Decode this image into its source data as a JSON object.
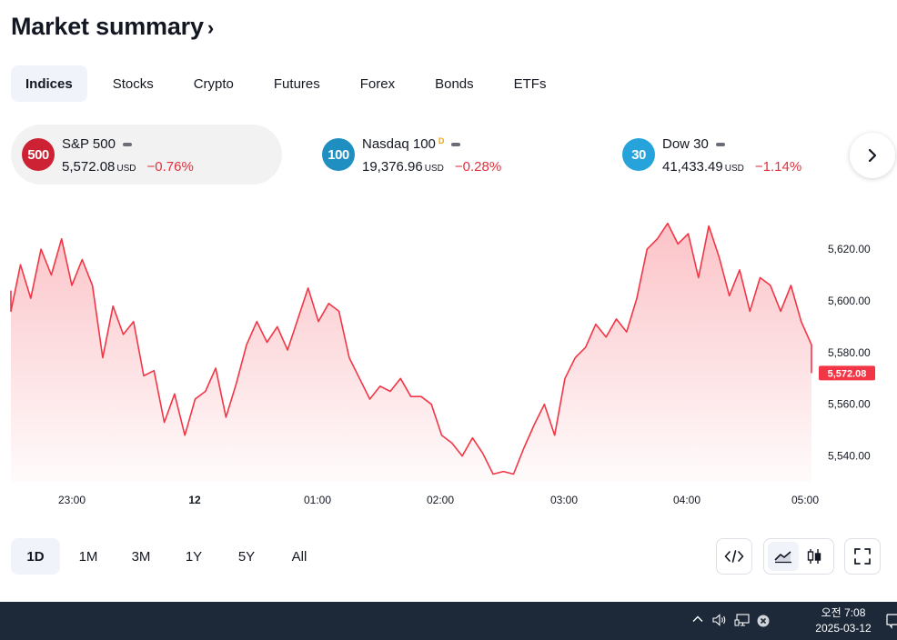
{
  "header": {
    "title": "Market summary",
    "chevron": "›"
  },
  "tabs": [
    {
      "label": "Indices",
      "active": true
    },
    {
      "label": "Stocks"
    },
    {
      "label": "Crypto"
    },
    {
      "label": "Futures"
    },
    {
      "label": "Forex"
    },
    {
      "label": "Bonds"
    },
    {
      "label": "ETFs"
    }
  ],
  "tickers": [
    {
      "badge": "500",
      "badge_color": "#cc2233",
      "name": "S&P 500",
      "flag": "",
      "price": "5,572.08",
      "currency": "USD",
      "change": "−0.76%",
      "active": true
    },
    {
      "badge": "100",
      "badge_color": "#1e8fc0",
      "name": "Nasdaq 100",
      "flag": "D",
      "price": "19,376.96",
      "currency": "USD",
      "change": "−0.28%"
    },
    {
      "badge": "30",
      "badge_color": "#26a3da",
      "name": "Dow 30",
      "flag": "",
      "price": "41,433.49",
      "currency": "USD",
      "change": "−1.14%"
    }
  ],
  "chart_data": {
    "type": "area",
    "series_color": "#f23645",
    "x_ticks": [
      "23:00",
      "12",
      "01:00",
      "02:00",
      "03:00",
      "04:00",
      "05:00"
    ],
    "y_ticks": [
      "5,620.00",
      "5,600.00",
      "5,580.00",
      "5,560.00",
      "5,540.00"
    ],
    "ylim": [
      5530,
      5632
    ],
    "last_price_label": "5,572.08",
    "points": [
      [
        "22:25",
        5604
      ],
      [
        "22:30",
        5596
      ],
      [
        "22:35",
        5614
      ],
      [
        "22:40",
        5601
      ],
      [
        "22:45",
        5620
      ],
      [
        "22:50",
        5610
      ],
      [
        "22:55",
        5624
      ],
      [
        "23:00",
        5606
      ],
      [
        "23:05",
        5616
      ],
      [
        "23:10",
        5606
      ],
      [
        "23:15",
        5578
      ],
      [
        "23:20",
        5598
      ],
      [
        "23:25",
        5587
      ],
      [
        "23:30",
        5592
      ],
      [
        "23:35",
        5571
      ],
      [
        "23:40",
        5573
      ],
      [
        "23:45",
        5553
      ],
      [
        "23:50",
        5564
      ],
      [
        "23:55",
        5548
      ],
      [
        "00:00",
        5562
      ],
      [
        "00:05",
        5565
      ],
      [
        "00:10",
        5574
      ],
      [
        "00:15",
        5555
      ],
      [
        "00:20",
        5568
      ],
      [
        "00:25",
        5583
      ],
      [
        "00:30",
        5592
      ],
      [
        "00:35",
        5584
      ],
      [
        "00:40",
        5590
      ],
      [
        "00:45",
        5581
      ],
      [
        "00:50",
        5593
      ],
      [
        "00:55",
        5605
      ],
      [
        "01:00",
        5592
      ],
      [
        "01:05",
        5599
      ],
      [
        "01:10",
        5596
      ],
      [
        "01:15",
        5578
      ],
      [
        "01:20",
        5570
      ],
      [
        "01:25",
        5562
      ],
      [
        "01:30",
        5567
      ],
      [
        "01:35",
        5565
      ],
      [
        "01:40",
        5570
      ],
      [
        "01:45",
        5563
      ],
      [
        "01:50",
        5563
      ],
      [
        "01:55",
        5560
      ],
      [
        "02:00",
        5548
      ],
      [
        "02:05",
        5545
      ],
      [
        "02:10",
        5540
      ],
      [
        "02:15",
        5547
      ],
      [
        "02:20",
        5541
      ],
      [
        "02:25",
        5533
      ],
      [
        "02:30",
        5534
      ],
      [
        "02:35",
        5533
      ],
      [
        "02:40",
        5543
      ],
      [
        "02:45",
        5552
      ],
      [
        "02:50",
        5560
      ],
      [
        "02:55",
        5548
      ],
      [
        "03:00",
        5570
      ],
      [
        "03:05",
        5578
      ],
      [
        "03:10",
        5582
      ],
      [
        "03:15",
        5591
      ],
      [
        "03:20",
        5586
      ],
      [
        "03:25",
        5593
      ],
      [
        "03:30",
        5588
      ],
      [
        "03:35",
        5601
      ],
      [
        "03:40",
        5620
      ],
      [
        "03:45",
        5624
      ],
      [
        "03:50",
        5630
      ],
      [
        "03:55",
        5622
      ],
      [
        "04:00",
        5626
      ],
      [
        "04:05",
        5609
      ],
      [
        "04:10",
        5629
      ],
      [
        "04:15",
        5617
      ],
      [
        "04:20",
        5602
      ],
      [
        "04:25",
        5612
      ],
      [
        "04:30",
        5596
      ],
      [
        "04:35",
        5609
      ],
      [
        "04:40",
        5606
      ],
      [
        "04:45",
        5596
      ],
      [
        "04:50",
        5606
      ],
      [
        "04:55",
        5592
      ],
      [
        "05:00",
        5583
      ],
      [
        "05:05",
        5577
      ],
      [
        "05:08",
        5572.08
      ]
    ]
  },
  "ranges": [
    {
      "label": "1D",
      "active": true
    },
    {
      "label": "1M"
    },
    {
      "label": "3M"
    },
    {
      "label": "1Y"
    },
    {
      "label": "5Y"
    },
    {
      "label": "All"
    }
  ],
  "icons": {
    "next": "chevron-right-icon",
    "embed": "code-icon",
    "area_chart": "area-chart-icon",
    "candles": "candlestick-icon",
    "fullscreen": "fullscreen-icon"
  },
  "taskbar": {
    "time": "오전 7:08",
    "date": "2025-03-12",
    "bg": "#1d2939"
  }
}
